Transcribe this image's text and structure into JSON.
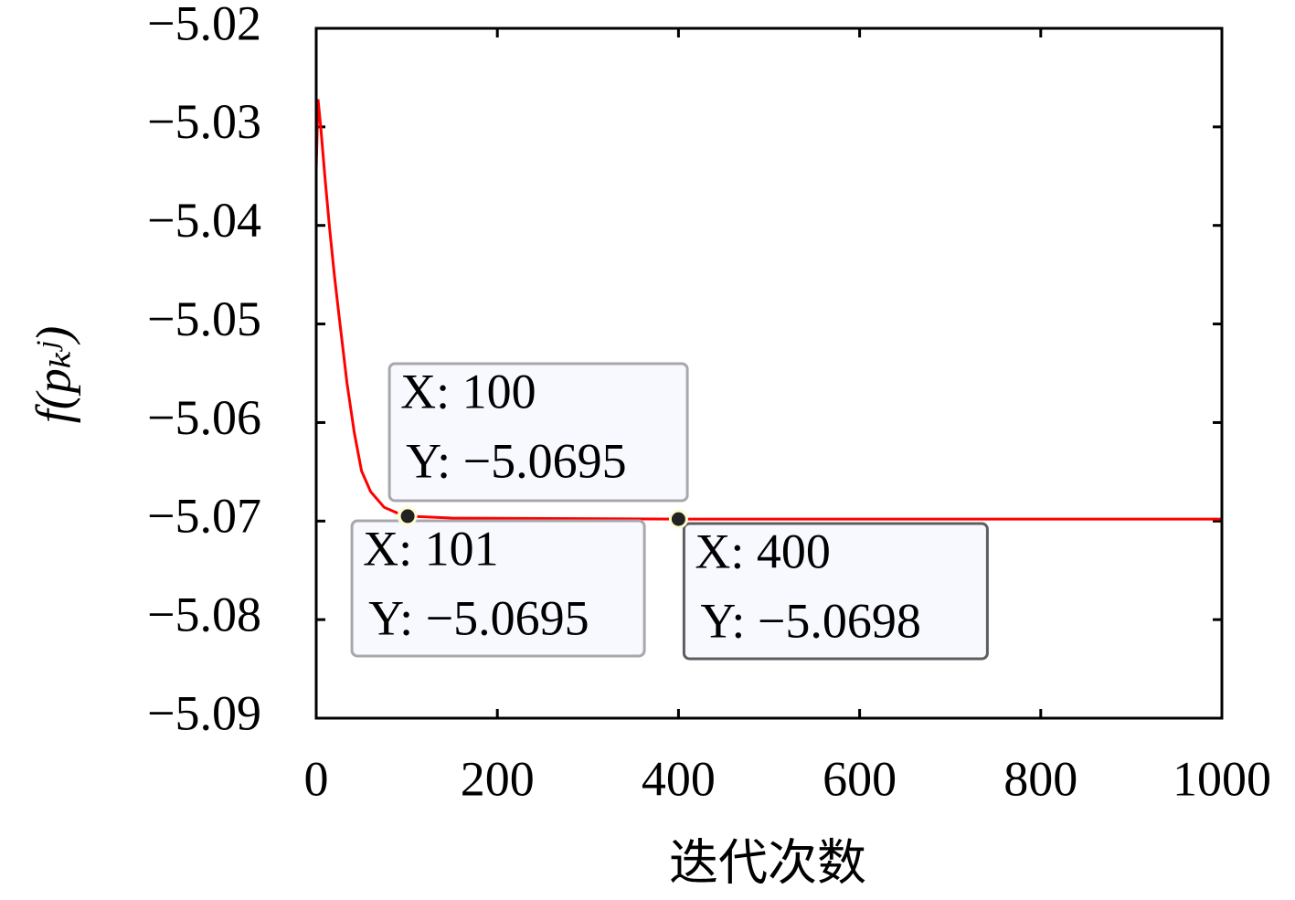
{
  "chart_data": {
    "type": "line",
    "xlabel": "迭代次数",
    "ylabel": "f(pₖʲ)",
    "xlim": [
      0,
      1000
    ],
    "ylim": [
      -5.09,
      -5.02
    ],
    "xticks": [
      0,
      200,
      400,
      600,
      800,
      1000
    ],
    "yticks": [
      {
        "value": -5.09,
        "label": "−5.09"
      },
      {
        "value": -5.08,
        "label": "−5.08"
      },
      {
        "value": -5.07,
        "label": "−5.07"
      },
      {
        "value": -5.06,
        "label": "−5.06"
      },
      {
        "value": -5.05,
        "label": "−5.05"
      },
      {
        "value": -5.04,
        "label": "−5.04"
      },
      {
        "value": -5.03,
        "label": "−5.03"
      },
      {
        "value": -5.02,
        "label": "−5.02"
      }
    ],
    "series": [
      {
        "color": "#ff0000",
        "x": [
          0,
          2,
          5,
          10,
          15,
          20,
          25,
          34,
          42,
          50,
          60,
          75,
          90,
          100,
          101,
          150,
          400,
          1000
        ],
        "values": [
          -5.0343,
          -5.0272,
          -5.03,
          -5.0355,
          -5.0405,
          -5.045,
          -5.049,
          -5.056,
          -5.061,
          -5.0649,
          -5.067,
          -5.0686,
          -5.0692,
          -5.0695,
          -5.0695,
          -5.0697,
          -5.0698,
          -5.0698
        ]
      }
    ],
    "annotations": [
      {
        "x": 100,
        "y": -5.0695,
        "lines": [
          "X: 100",
          "Y: −5.0695"
        ]
      },
      {
        "x": 101,
        "y": -5.0695,
        "lines": [
          "X: 101",
          "Y: −5.0695"
        ]
      },
      {
        "x": 400,
        "y": -5.0698,
        "lines": [
          "X: 400",
          "Y: −5.0698"
        ]
      }
    ]
  }
}
